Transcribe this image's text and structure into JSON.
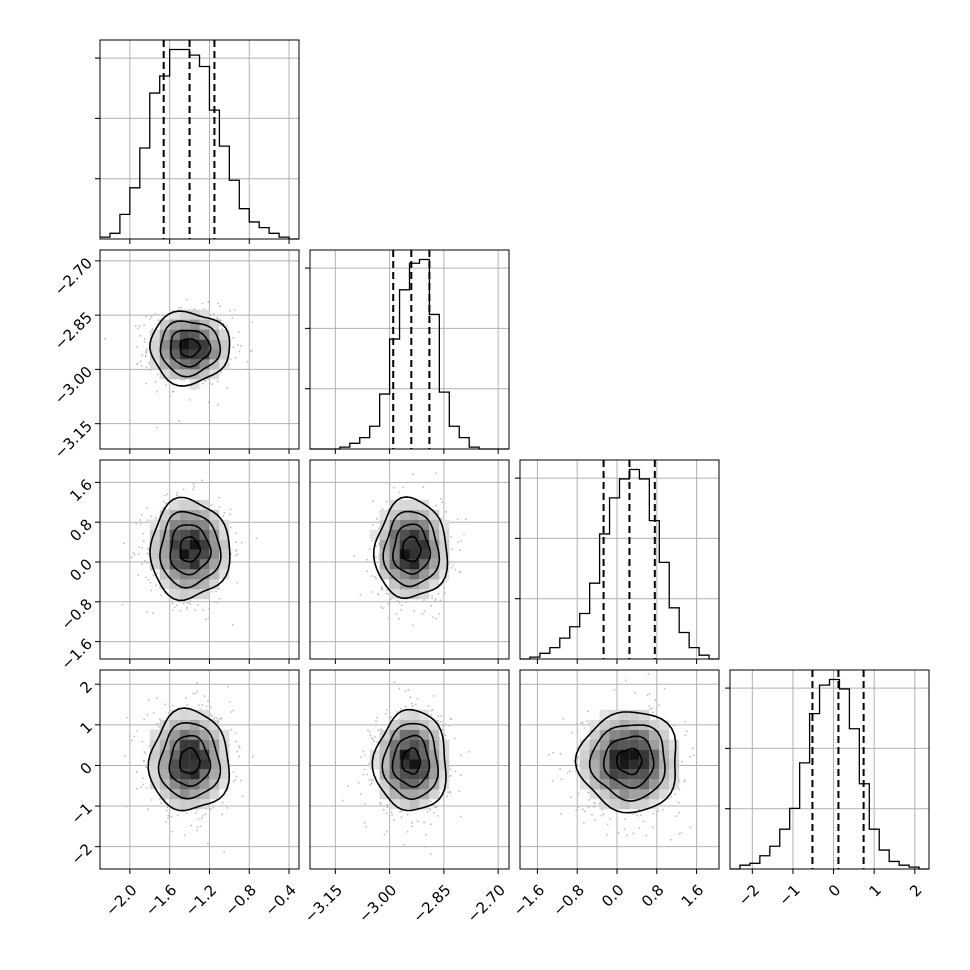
{
  "chart_data": {
    "type": "corner",
    "title": "",
    "n_params": 4,
    "params": [
      {
        "label": "",
        "mean": -1.4,
        "sd": 0.2,
        "ticks": [
          -2.0,
          -1.6,
          -1.2,
          -0.8,
          -0.4
        ],
        "tick_labels": [
          "−2.0",
          "−1.6",
          "−1.2",
          "−0.8",
          "−0.4"
        ],
        "range": [
          -2.3,
          -0.3
        ],
        "quantiles": [
          -1.66,
          -1.4,
          -1.15
        ]
      },
      {
        "label": "",
        "mean": -2.94,
        "sd": 0.05,
        "ticks": [
          -3.15,
          -3.0,
          -2.85,
          -2.7
        ],
        "tick_labels": [
          "−3.15",
          "−3.00",
          "−2.85",
          "−2.70"
        ],
        "range": [
          -3.22,
          -2.67
        ],
        "quantiles": [
          -2.99,
          -2.94,
          -2.89
        ]
      },
      {
        "label": "",
        "mean": 0.25,
        "sd": 0.5,
        "ticks": [
          -1.6,
          -0.8,
          0.0,
          0.8,
          1.6
        ],
        "tick_labels": [
          "−1.6",
          "−0.8",
          "0.0",
          "0.8",
          "1.6"
        ],
        "range": [
          -1.95,
          2.05
        ],
        "quantiles": [
          -0.27,
          0.25,
          0.76
        ]
      },
      {
        "label": "",
        "mean": 0.1,
        "sd": 0.62,
        "ticks": [
          -2,
          -1,
          0,
          1,
          2
        ],
        "tick_labels": [
          "−2",
          "−1",
          "0",
          "1",
          "2"
        ],
        "range": [
          -2.55,
          2.35
        ],
        "quantiles": [
          -0.52,
          0.12,
          0.74
        ]
      }
    ],
    "histograms": [
      {
        "param": 0,
        "counts": [
          1,
          3,
          13,
          27,
          48,
          77,
          86,
          100,
          100,
          97,
          91,
          68,
          49,
          31,
          16,
          9,
          6,
          3,
          1,
          0
        ]
      },
      {
        "param": 1,
        "counts": [
          0,
          0,
          0,
          1,
          3,
          6,
          12,
          29,
          58,
          84,
          98,
          100,
          71,
          30,
          12,
          6,
          1,
          0,
          0,
          0
        ]
      },
      {
        "param": 2,
        "counts": [
          0,
          1,
          3,
          6,
          11,
          17,
          24,
          40,
          66,
          85,
          95,
          100,
          95,
          73,
          51,
          27,
          14,
          6,
          2,
          0
        ]
      },
      {
        "param": 3,
        "counts": [
          0,
          2,
          3,
          7,
          12,
          21,
          32,
          56,
          82,
          97,
          100,
          95,
          74,
          45,
          21,
          10,
          4,
          2,
          1,
          0
        ]
      }
    ],
    "grid": true,
    "contour_levels": [
      0.118,
      0.393,
      0.675,
      0.864
    ],
    "diag_yticks": 3
  }
}
